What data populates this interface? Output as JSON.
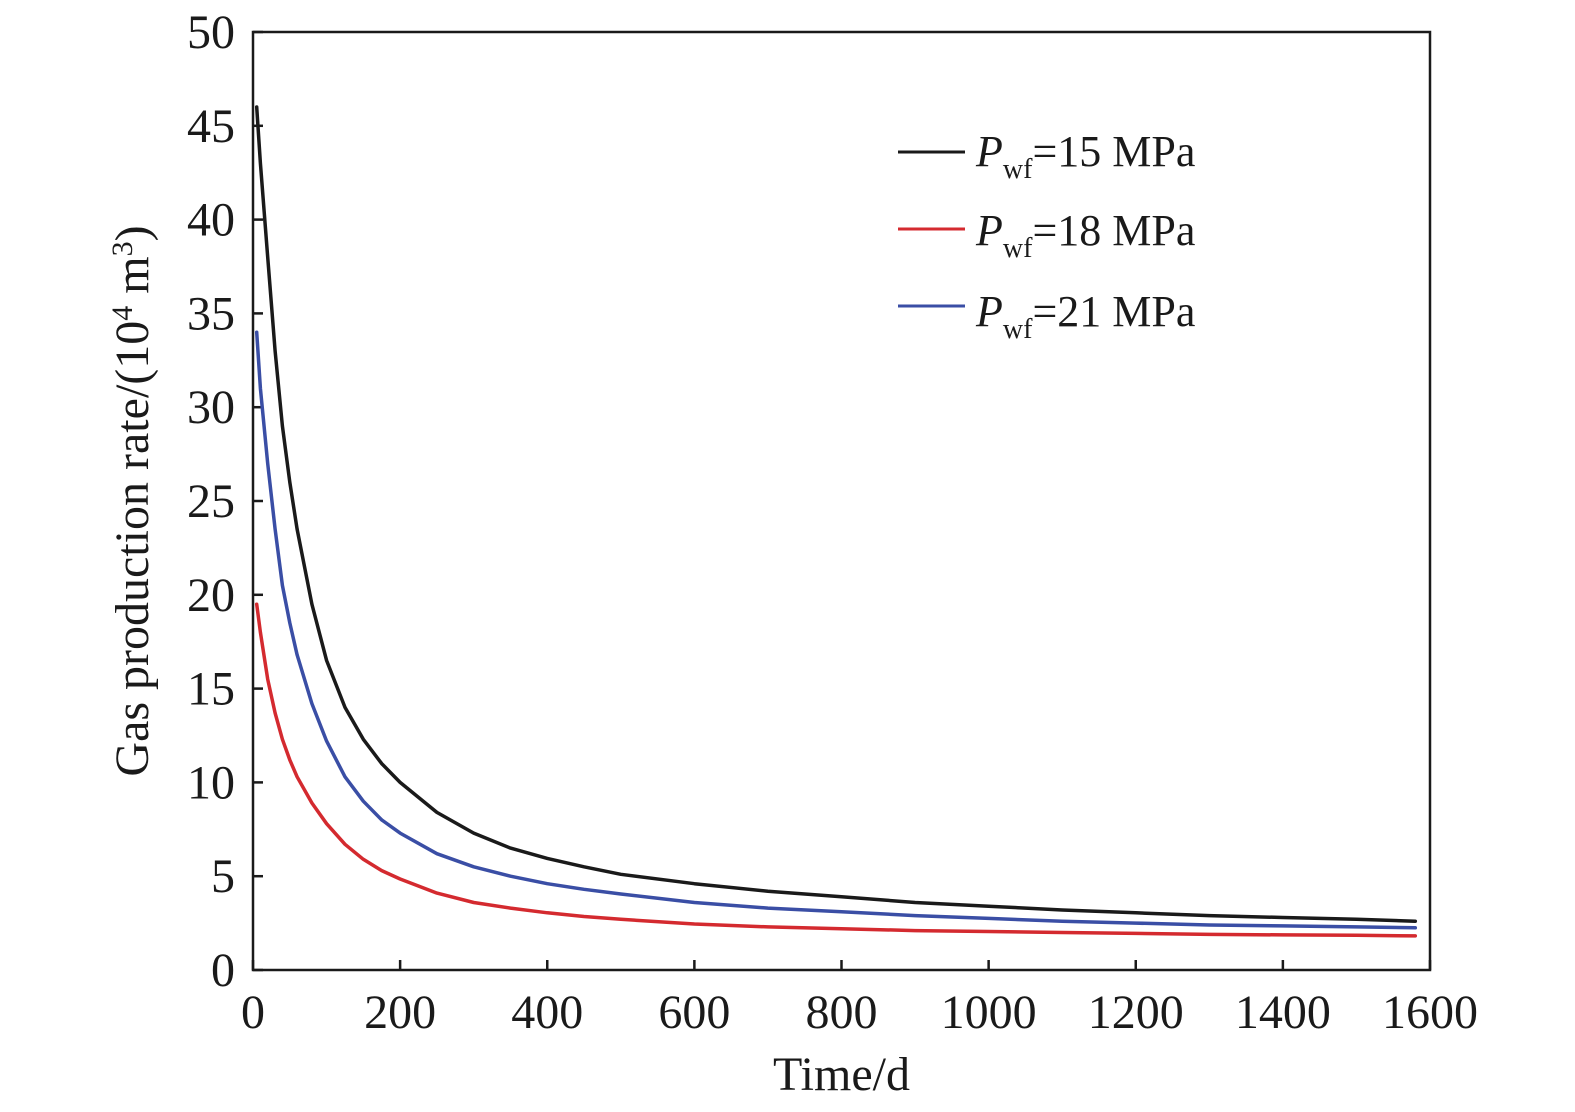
{
  "chart_data": {
    "type": "line",
    "title": "",
    "xlabel": "Time/d",
    "ylabel": {
      "prefix": "Gas production rate/(10",
      "exp1": "4",
      "mid": " m",
      "exp2": "3",
      "suffix": ")"
    },
    "xlim": [
      0,
      1600
    ],
    "ylim": [
      0,
      50
    ],
    "xticks": [
      0,
      200,
      400,
      600,
      800,
      1000,
      1200,
      1400,
      1600
    ],
    "yticks": [
      0,
      5,
      10,
      15,
      20,
      25,
      30,
      35,
      40,
      45,
      50
    ],
    "grid": false,
    "legend_position": "top-right",
    "x": [
      5,
      10,
      20,
      30,
      40,
      50,
      60,
      80,
      100,
      125,
      150,
      175,
      200,
      250,
      300,
      350,
      400,
      450,
      500,
      600,
      700,
      800,
      900,
      1000,
      1100,
      1200,
      1300,
      1400,
      1500,
      1580
    ],
    "series": [
      {
        "legend": {
          "symbol": "P",
          "subscript": "wf",
          "rest": "=15 MPa"
        },
        "color": "#1a1a1a",
        "values": [
          46,
          43,
          38,
          33,
          29,
          26,
          23.5,
          19.5,
          16.5,
          14,
          12.3,
          11,
          10,
          8.4,
          7.3,
          6.5,
          5.95,
          5.5,
          5.1,
          4.6,
          4.2,
          3.9,
          3.6,
          3.4,
          3.2,
          3.05,
          2.9,
          2.8,
          2.7,
          2.6
        ]
      },
      {
        "legend": {
          "symbol": "P",
          "subscript": "wf",
          "rest": "=18 MPa"
        },
        "color": "#d42a2f",
        "values": [
          19.5,
          18,
          15.5,
          13.7,
          12.3,
          11.2,
          10.3,
          8.9,
          7.8,
          6.7,
          5.9,
          5.3,
          4.85,
          4.1,
          3.6,
          3.3,
          3.05,
          2.85,
          2.7,
          2.45,
          2.3,
          2.2,
          2.1,
          2.05,
          2.0,
          1.95,
          1.9,
          1.87,
          1.85,
          1.82
        ]
      },
      {
        "legend": {
          "symbol": "P",
          "subscript": "wf",
          "rest": "=21 MPa"
        },
        "color": "#3a4ea5",
        "values": [
          34,
          31,
          27,
          23.5,
          20.5,
          18.5,
          16.8,
          14.2,
          12.2,
          10.3,
          9.0,
          8.0,
          7.3,
          6.2,
          5.5,
          5.0,
          4.6,
          4.3,
          4.05,
          3.6,
          3.3,
          3.1,
          2.9,
          2.75,
          2.6,
          2.5,
          2.4,
          2.35,
          2.3,
          2.25
        ]
      }
    ]
  }
}
